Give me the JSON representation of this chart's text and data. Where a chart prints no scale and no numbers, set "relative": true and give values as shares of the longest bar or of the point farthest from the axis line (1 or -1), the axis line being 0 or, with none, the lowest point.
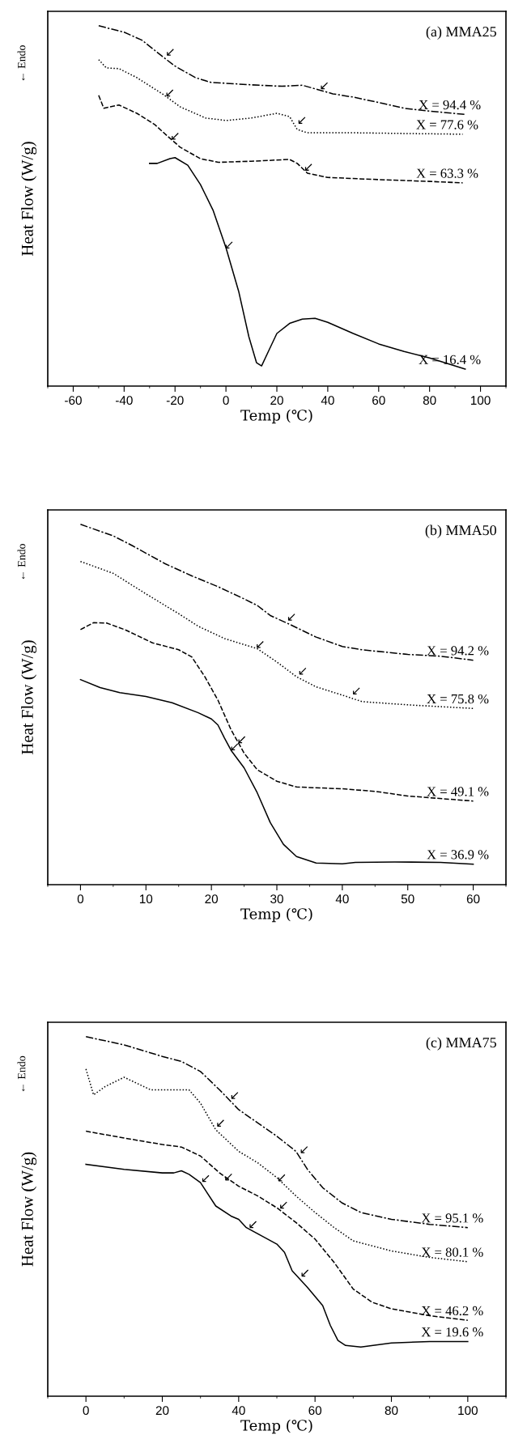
{
  "chart_data": [
    {
      "type": "line",
      "title": "(a) MMA25",
      "xlabel": "Temp (℃)",
      "ylabel": "Heat Flow (W/g)",
      "relative": true,
      "xlim": [
        -70,
        110
      ],
      "xticks": [
        -60,
        -40,
        -20,
        0,
        20,
        40,
        60,
        80,
        100
      ],
      "tick_labels": "x",
      "series": [
        {
          "name": "X = 94.4 %",
          "color": "#000000",
          "line_style": "dashdot",
          "x": [
            -50,
            -40,
            -33,
            -25,
            -20,
            -12,
            -6,
            10,
            22,
            30,
            35,
            42,
            50,
            58,
            62,
            70,
            80,
            94
          ],
          "values": [
            1.0,
            0.982,
            0.96,
            0.915,
            0.888,
            0.856,
            0.843,
            0.836,
            0.832,
            0.835,
            0.825,
            0.811,
            0.802,
            0.79,
            0.784,
            0.771,
            0.763,
            0.754
          ]
        },
        {
          "name": "X = 77.6 %",
          "color": "#000000",
          "line_style": "dotted",
          "x": [
            -50,
            -47,
            -42,
            -35,
            -25,
            -18,
            -8,
            0,
            10,
            20,
            25,
            28,
            32,
            50,
            70,
            93
          ],
          "values": [
            0.906,
            0.883,
            0.881,
            0.856,
            0.811,
            0.775,
            0.744,
            0.737,
            0.744,
            0.757,
            0.748,
            0.712,
            0.703,
            0.703,
            0.701,
            0.699
          ]
        },
        {
          "name": "X = 63.3 %",
          "color": "#000000",
          "line_style": "dashed",
          "x": [
            -50,
            -48,
            -42,
            -35,
            -28,
            -23,
            -18,
            -10,
            -3,
            10,
            25,
            28,
            32,
            40,
            60,
            80,
            93
          ],
          "values": [
            0.807,
            0.771,
            0.78,
            0.757,
            0.726,
            0.694,
            0.663,
            0.631,
            0.621,
            0.624,
            0.629,
            0.618,
            0.591,
            0.579,
            0.573,
            0.568,
            0.564
          ]
        },
        {
          "name": "X = 16.4 %",
          "color": "#000000",
          "line_style": "solid",
          "x": [
            -30,
            -27,
            -22,
            -20,
            -15,
            -10,
            -5,
            0,
            5,
            9,
            12,
            14,
            17,
            20,
            25,
            30,
            35,
            40,
            50,
            60,
            70,
            80,
            94
          ],
          "values": [
            0.618,
            0.618,
            0.631,
            0.634,
            0.613,
            0.559,
            0.487,
            0.384,
            0.263,
            0.137,
            0.065,
            0.056,
            0.101,
            0.146,
            0.174,
            0.186,
            0.188,
            0.177,
            0.146,
            0.117,
            0.096,
            0.078,
            0.047
          ]
        }
      ],
      "annotations": [
        "← Endo",
        {
          "text": "↙",
          "x": -23.0,
          "y": 0.915
        },
        {
          "text": "↙",
          "x": 37.5,
          "y": 0.822
        },
        {
          "text": "↙",
          "x": -23.2,
          "y": 0.802
        },
        {
          "text": "↙",
          "x": 28.7,
          "y": 0.726
        },
        {
          "text": "↙",
          "x": -21.1,
          "y": 0.682
        },
        {
          "text": "↙",
          "x": 31.3,
          "y": 0.596
        },
        {
          "text": "↙",
          "x": 0.1,
          "y": 0.38
        }
      ]
    },
    {
      "type": "line",
      "title": "(b) MMA50",
      "xlabel": "Temp (℃)",
      "ylabel": "Heat Flow (W/g)",
      "relative": true,
      "xlim": [
        -5,
        65
      ],
      "xticks": [
        0,
        10,
        20,
        30,
        40,
        50,
        60
      ],
      "tick_labels": "x",
      "series": [
        {
          "name": "X = 94.2 %",
          "color": "#000000",
          "line_style": "dashdot",
          "x": [
            0,
            5,
            8,
            13,
            17,
            21,
            25,
            27,
            29,
            32,
            36,
            40,
            43,
            50,
            55,
            60
          ],
          "values": [
            1.0,
            0.968,
            0.94,
            0.89,
            0.857,
            0.827,
            0.793,
            0.775,
            0.747,
            0.722,
            0.687,
            0.661,
            0.652,
            0.639,
            0.634,
            0.623
          ]
        },
        {
          "name": "X = 75.8 %",
          "color": "#000000",
          "line_style": "dotted",
          "x": [
            0,
            5,
            10,
            15,
            18,
            22,
            27,
            30,
            33,
            36,
            40,
            43,
            50,
            60
          ],
          "values": [
            0.897,
            0.864,
            0.807,
            0.752,
            0.717,
            0.683,
            0.655,
            0.618,
            0.577,
            0.549,
            0.526,
            0.508,
            0.499,
            0.489
          ]
        },
        {
          "name": "X = 49.1 %",
          "color": "#000000",
          "line_style": "dashed",
          "x": [
            0,
            2,
            4,
            7,
            11,
            15,
            17,
            19,
            21,
            23,
            25,
            27,
            30,
            33,
            40,
            45,
            50,
            60
          ],
          "values": [
            0.708,
            0.727,
            0.726,
            0.706,
            0.671,
            0.652,
            0.632,
            0.577,
            0.512,
            0.43,
            0.365,
            0.319,
            0.287,
            0.271,
            0.266,
            0.259,
            0.246,
            0.232
          ]
        },
        {
          "name": "X = 36.9 %",
          "color": "#000000",
          "line_style": "solid",
          "x": [
            0,
            3,
            6,
            10,
            14,
            18,
            20,
            21,
            22,
            23,
            25,
            27,
            29,
            31,
            33,
            36,
            40,
            42,
            48,
            55,
            60
          ],
          "values": [
            0.569,
            0.547,
            0.533,
            0.522,
            0.505,
            0.477,
            0.46,
            0.443,
            0.407,
            0.373,
            0.324,
            0.255,
            0.172,
            0.112,
            0.078,
            0.06,
            0.058,
            0.062,
            0.063,
            0.062,
            0.057
          ]
        }
      ],
      "annotations": [
        "← Endo",
        {
          "text": "↙",
          "x": 31.8,
          "y": 0.731
        },
        {
          "text": "↙",
          "x": 27.0,
          "y": 0.655
        },
        {
          "text": "↙",
          "x": 33.5,
          "y": 0.581
        },
        {
          "text": "↙",
          "x": 41.7,
          "y": 0.526
        },
        {
          "text": "↙",
          "x": 24.2,
          "y": 0.391
        },
        {
          "text": "↙",
          "x": 23.1,
          "y": 0.371
        }
      ]
    },
    {
      "type": "line",
      "title": "(c) MMA75",
      "xlabel": "Temp (℃)",
      "ylabel": "Heat Flow (W/g)",
      "relative": true,
      "xlim": [
        -10,
        110
      ],
      "xticks": [
        0,
        20,
        40,
        60,
        80,
        100
      ],
      "tick_labels": "x",
      "series": [
        {
          "name": "X = 95.1 %",
          "color": "#000000",
          "line_style": "dashdot",
          "x": [
            0,
            10,
            20,
            25,
            30,
            35,
            40,
            45,
            50,
            55,
            58,
            62,
            67,
            72,
            80,
            90,
            100
          ],
          "values": [
            1.0,
            0.977,
            0.945,
            0.931,
            0.903,
            0.852,
            0.797,
            0.76,
            0.723,
            0.681,
            0.631,
            0.58,
            0.538,
            0.511,
            0.492,
            0.478,
            0.469
          ]
        },
        {
          "name": "X = 80.1 %",
          "color": "#000000",
          "line_style": "dotted",
          "x": [
            0,
            2,
            5,
            10,
            17,
            27,
            30,
            34,
            40,
            45,
            50,
            55,
            60,
            65,
            70,
            80,
            90,
            100
          ],
          "values": [
            0.91,
            0.838,
            0.861,
            0.887,
            0.852,
            0.852,
            0.815,
            0.741,
            0.681,
            0.649,
            0.608,
            0.557,
            0.511,
            0.469,
            0.432,
            0.404,
            0.386,
            0.374
          ]
        },
        {
          "name": "X = 46.2 %",
          "color": "#000000",
          "line_style": "dashed",
          "x": [
            0,
            10,
            20,
            25,
            30,
            35,
            40,
            45,
            50,
            55,
            60,
            65,
            70,
            75,
            80,
            90,
            100
          ],
          "values": [
            0.737,
            0.718,
            0.7,
            0.693,
            0.668,
            0.621,
            0.584,
            0.557,
            0.524,
            0.483,
            0.437,
            0.372,
            0.298,
            0.261,
            0.243,
            0.224,
            0.211
          ]
        },
        {
          "name": "X = 19.6 %",
          "color": "#000000",
          "line_style": "solid",
          "x": [
            0,
            10,
            20,
            23,
            25,
            27,
            30,
            34,
            38,
            40,
            42,
            46,
            50,
            52,
            54,
            58,
            62,
            64,
            66,
            68,
            72,
            80,
            90,
            100
          ],
          "values": [
            0.645,
            0.631,
            0.621,
            0.621,
            0.627,
            0.617,
            0.594,
            0.529,
            0.501,
            0.492,
            0.469,
            0.446,
            0.423,
            0.4,
            0.349,
            0.303,
            0.252,
            0.197,
            0.155,
            0.141,
            0.137,
            0.148,
            0.152,
            0.152
          ]
        }
      ],
      "annotations": [
        "← Endo",
        {
          "text": "↙",
          "x": 38.2,
          "y": 0.825
        },
        {
          "text": "↙",
          "x": 56.4,
          "y": 0.674
        },
        {
          "text": "↙",
          "x": 34.5,
          "y": 0.748
        },
        {
          "text": "↙",
          "x": 50.5,
          "y": 0.596
        },
        {
          "text": "↙",
          "x": 36.6,
          "y": 0.598
        },
        {
          "text": "↙",
          "x": 51.0,
          "y": 0.52
        },
        {
          "text": "↙",
          "x": 30.6,
          "y": 0.594
        },
        {
          "text": "↙",
          "x": 43.0,
          "y": 0.466
        },
        {
          "text": "↙",
          "x": 56.6,
          "y": 0.331
        }
      ]
    }
  ]
}
